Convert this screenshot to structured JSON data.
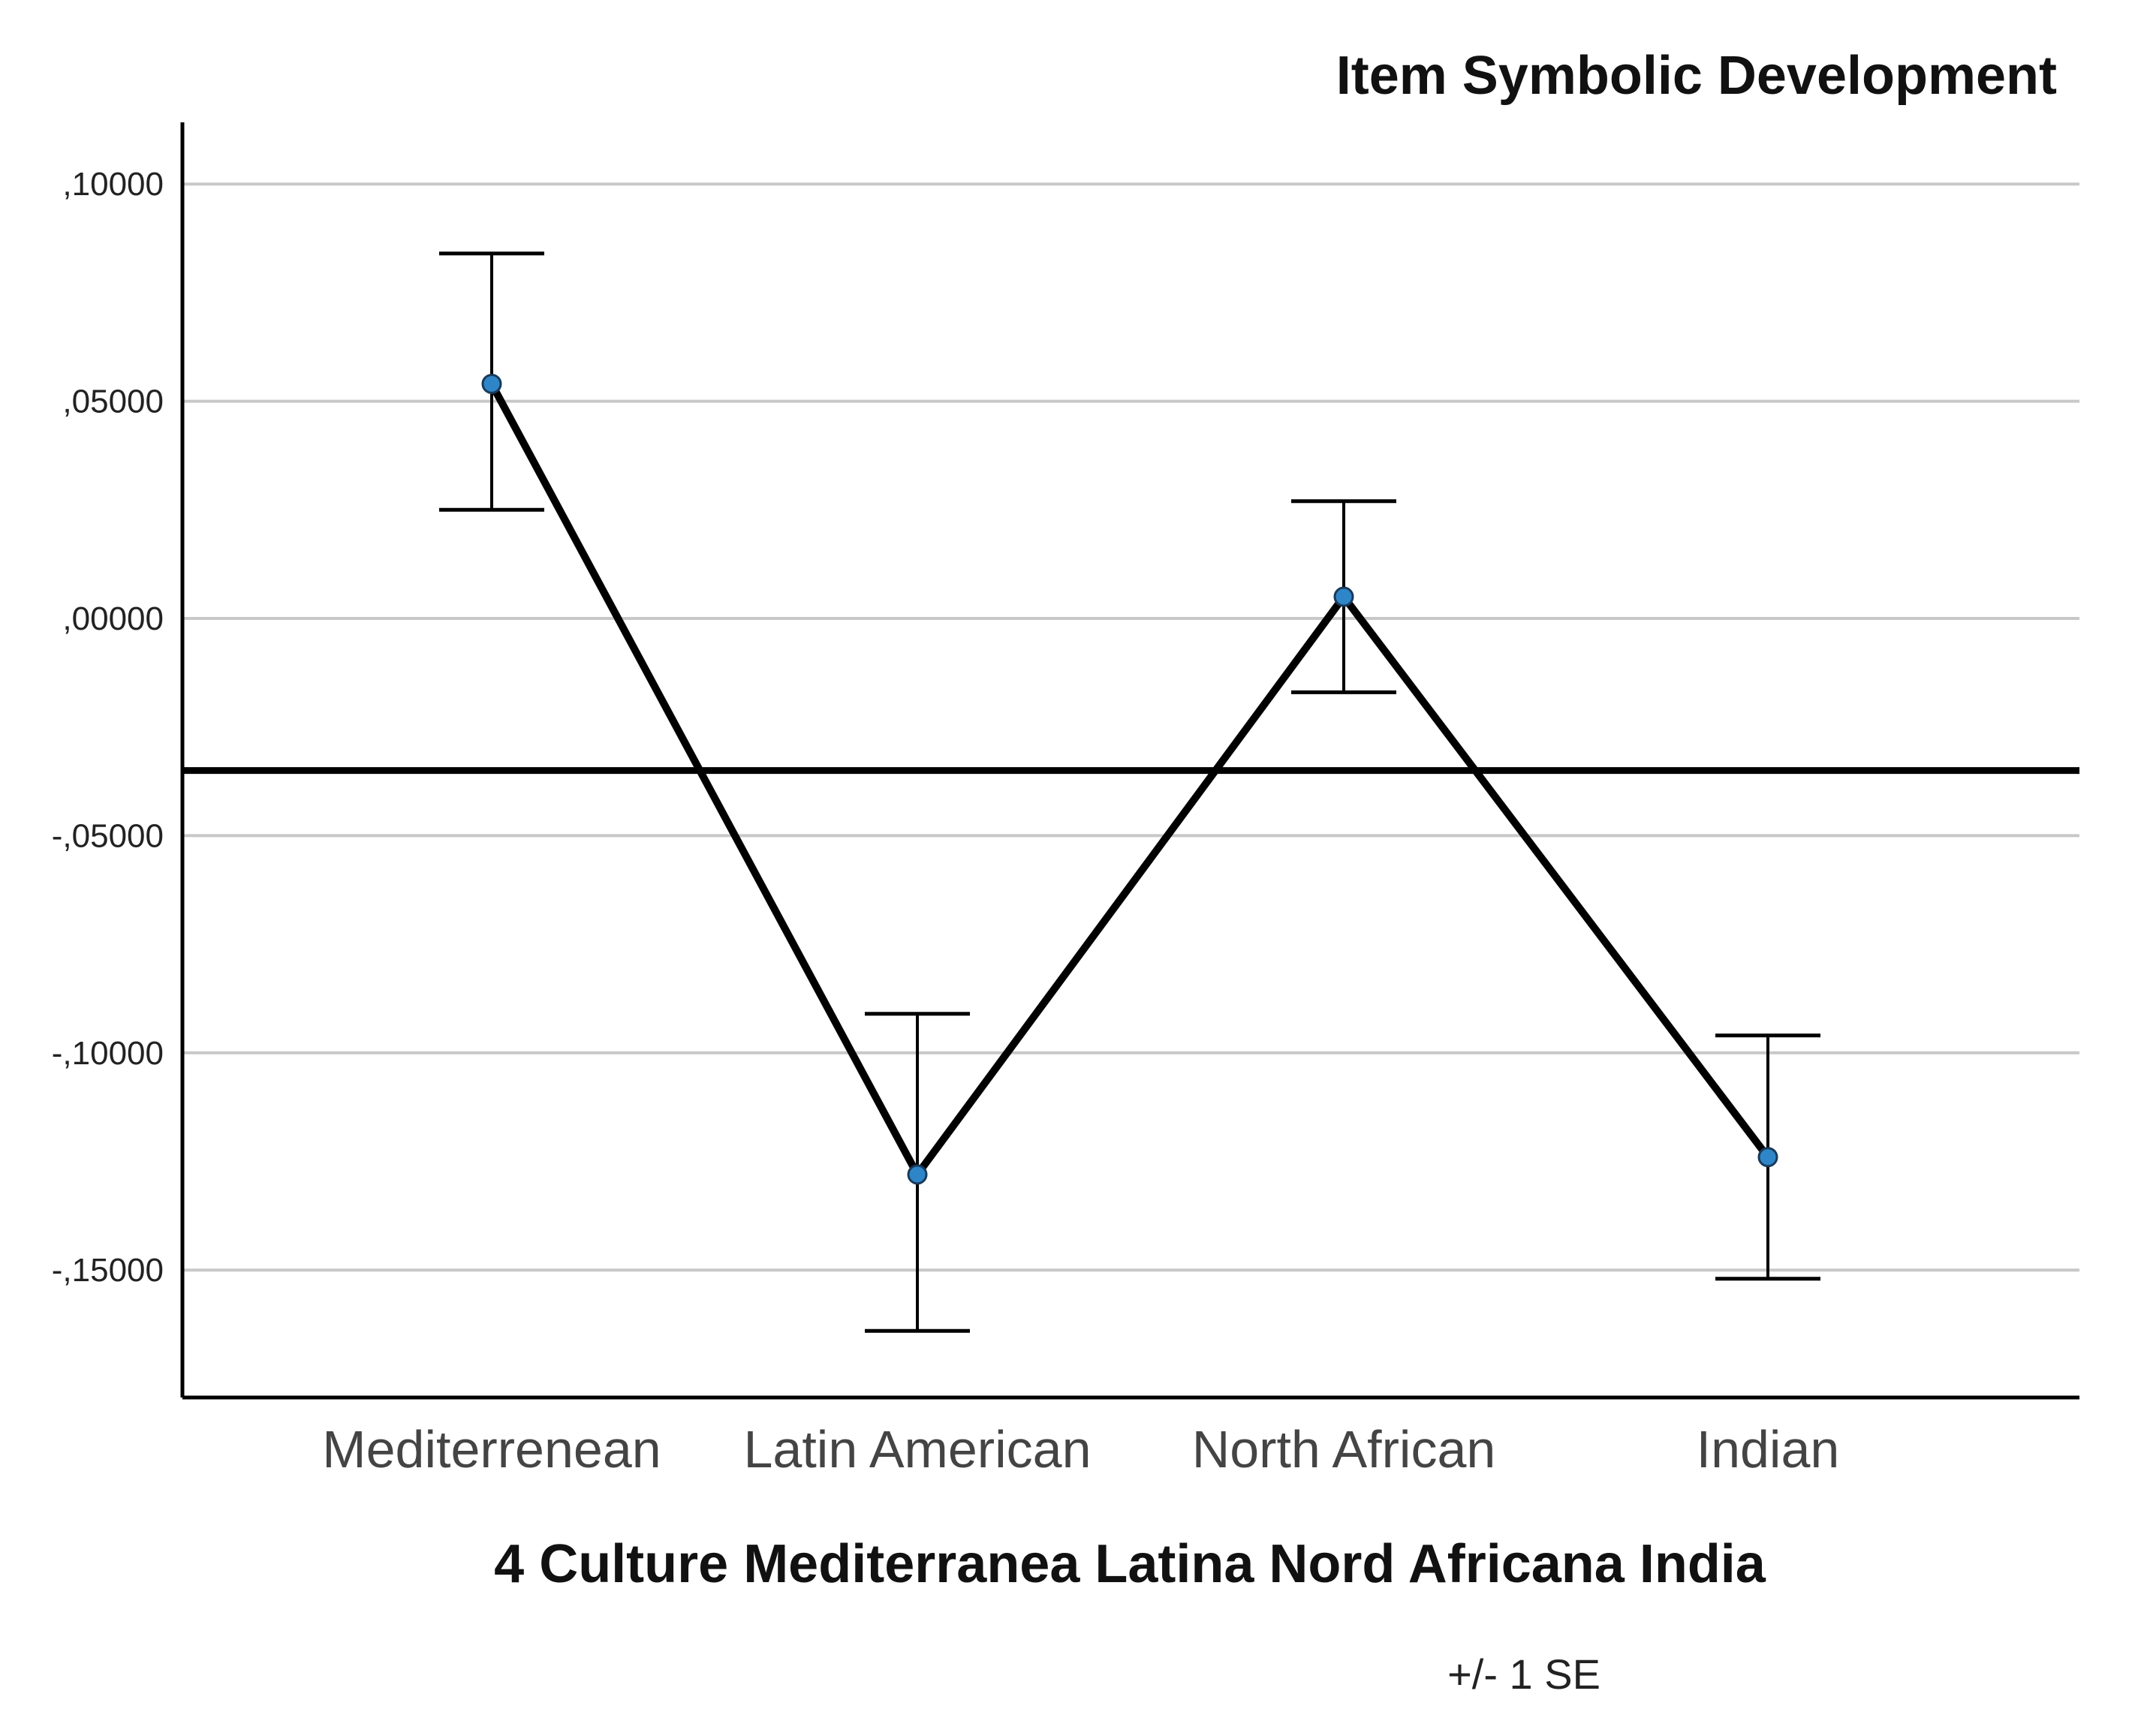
{
  "chart_data": {
    "type": "line",
    "title": "Item Symbolic Development",
    "xlabel": "4 Culture Mediterranea Latina Nord Africana India",
    "ylabel": "",
    "note": "+/- 1 SE",
    "categories": [
      "Mediterrenean",
      "Latin American",
      "North African",
      "Indian"
    ],
    "series": [
      {
        "values": [
          0.054,
          -0.128,
          0.005,
          -0.124
        ],
        "error_upper": [
          0.084,
          -0.091,
          0.027,
          -0.096
        ],
        "error_lower": [
          0.025,
          -0.164,
          -0.017,
          -0.152
        ]
      }
    ],
    "reference_line": -0.035,
    "yticks": [
      {
        "value": 0.1,
        "label": ",10000"
      },
      {
        "value": 0.05,
        "label": ",05000"
      },
      {
        "value": 0.0,
        "label": ",00000"
      },
      {
        "value": -0.05,
        "label": "-,05000"
      },
      {
        "value": -0.1,
        "label": "-,10000"
      },
      {
        "value": -0.15,
        "label": "-,15000"
      }
    ],
    "ylim": [
      -0.18,
      0.115
    ],
    "grid": true,
    "colors": {
      "line": "#000000",
      "marker_fill": "#2e86c8",
      "grid": "#c8c8c8",
      "axis": "#000000",
      "error_bar": "#000000"
    }
  }
}
